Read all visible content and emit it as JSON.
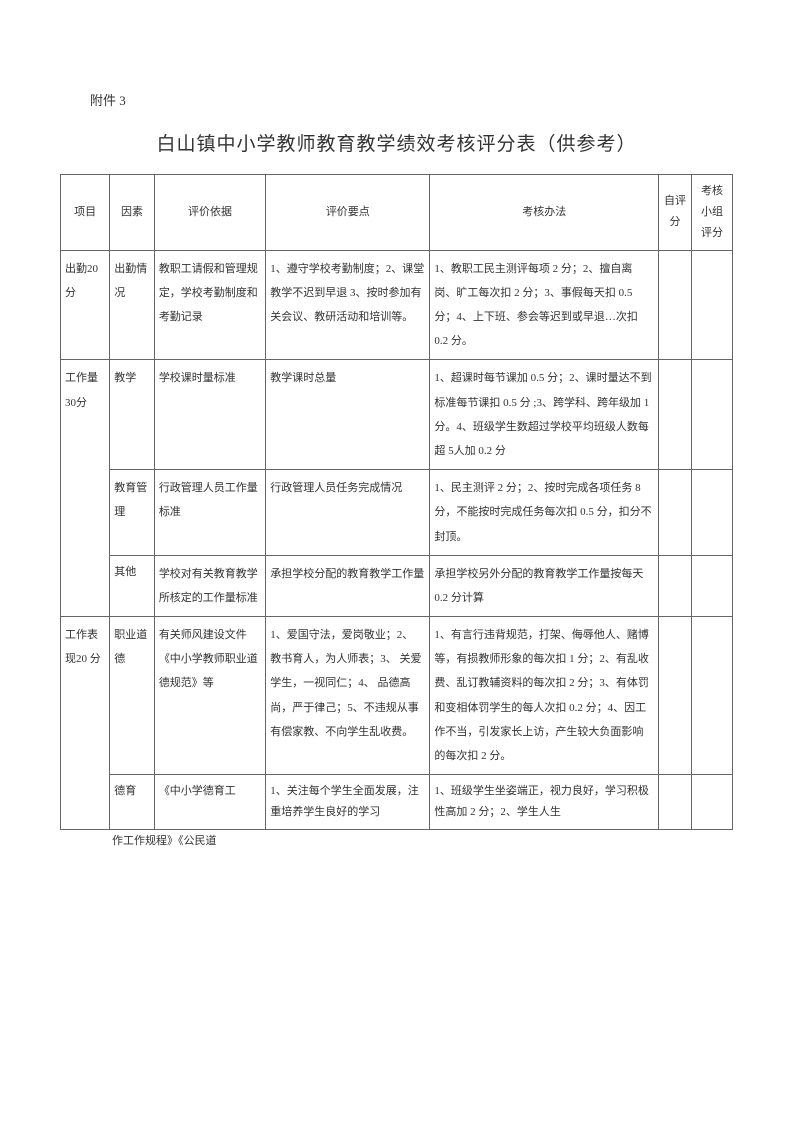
{
  "attachment": "附件 3",
  "title": "白山镇中小学教师教育教学绩效考核评分表（供参考）",
  "headers": {
    "project": "项目",
    "factor": "因素",
    "basis": "评价依据",
    "points": "评价要点",
    "method": "考核办法",
    "self": "自评分",
    "group": "考核小组评分"
  },
  "rows": {
    "r1": {
      "project": "出勤20 分",
      "factor": "出勤情况",
      "basis": "教职工请假和管理规定，学校考勤制度和考勤记录",
      "points": "1、遵守学校考勤制度；2、课堂教学不迟到早退 3、按时参加有关会议、教研活动和培训等。",
      "method": "1、教职工民主测评每项 2 分；2、擅自离岗、旷工每次扣 2 分；3、事假每天扣 0.5 分；4、上下班、参会等迟到或早退…次扣 0.2 分。"
    },
    "r2": {
      "project": "工作量30分",
      "factor": "教学",
      "basis": "学校课时量标准",
      "points": "教学课时总量",
      "method": "1、超课时每节课加 0.5 分；2、课时量达不到标准每节课扣 0.5 分 ;3、跨学科、跨年级加 1 分。4、班级学生数超过学校平均班级人数每超 5人加 0.2 分"
    },
    "r3": {
      "factor": "教育管理",
      "basis": "行政管理人员工作量标准",
      "points": "行政管理人员任务完成情况",
      "method": "1、民主测评 2 分；2、按时完成各项任务 8 分，不能按时完成任务每次扣 0.5 分，扣分不封顶。"
    },
    "r4": {
      "factor": "其他",
      "basis": "学校对有关教育教学所核定的工作量标准",
      "points": "承担学校分配的教育教学工作量",
      "method": "承担学校另外分配的教育教学工作量按每天 0.2 分计算"
    },
    "r5": {
      "project": "工作表现20 分",
      "factor": "职业道德",
      "basis": "有关师风建设文件《中小学教师职业道德规范》等",
      "points": "1、爱国守法，爱岗敬业；2、 教书育人，为人师表；3、 关爱学生，一视同仁；4、 品德高尚，严于律己；5、不违规从事有偿家教、不向学生乱收费。",
      "method": "1、有言行违背规范，打架、侮辱他人、赌博等，有损教师形象的每次扣 1 分；2、有乱收费、乱订教辅资料的每次扣 2 分；3、有体罚和变相体罚学生的每人次扣 0.2 分；4、因工作不当，引发家长上访，产生较大负面影响的每次扣 2 分。"
    },
    "r6": {
      "factor": "德育",
      "basis": "《中小学德育工",
      "points": "1、关注每个学生全面发展，注重培养学生良好的学习",
      "method": "1、班级学生坐姿端正，视力良好，学习积极性高加 2 分；2、学生人生"
    }
  },
  "footer": "作工作规程》《公民道"
}
